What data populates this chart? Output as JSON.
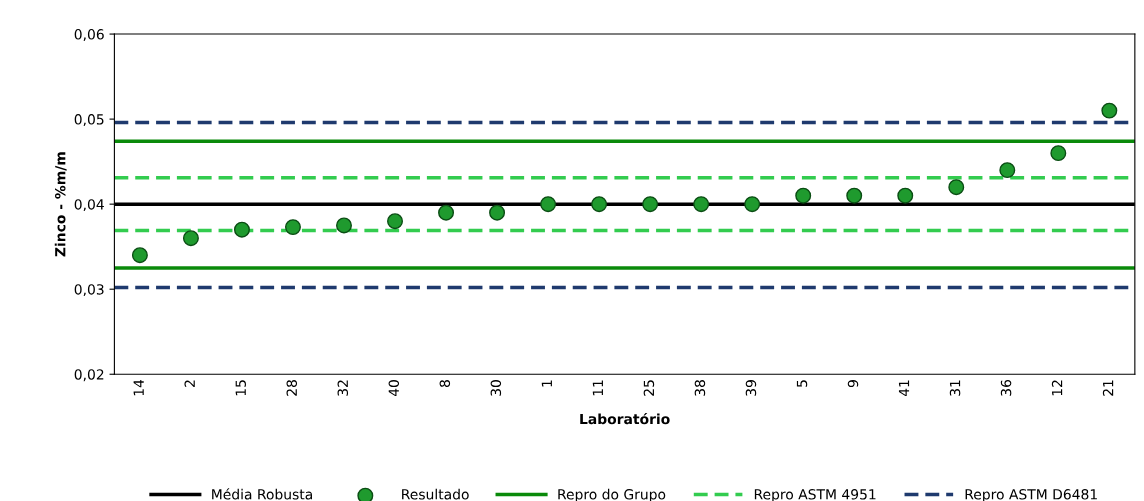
{
  "chart_data": {
    "type": "scatter",
    "xlabel": "Laboratório",
    "ylabel": "Zinco - %m/m",
    "categories": [
      "14",
      "2",
      "15",
      "28",
      "32",
      "40",
      "8",
      "30",
      "1",
      "11",
      "25",
      "38",
      "39",
      "5",
      "9",
      "41",
      "31",
      "36",
      "12",
      "21"
    ],
    "series": [
      {
        "name": "Resultado",
        "color": "#1f9a2e",
        "values": [
          0.034,
          0.036,
          0.037,
          0.0373,
          0.0375,
          0.038,
          0.039,
          0.039,
          0.04,
          0.04,
          0.04,
          0.04,
          0.04,
          0.041,
          0.041,
          0.041,
          0.042,
          0.044,
          0.046,
          0.051
        ]
      }
    ],
    "marker": "circle",
    "ylim": [
      0.02,
      0.06
    ],
    "yticks": [
      {
        "value": 0.02,
        "label": "0,02"
      },
      {
        "value": 0.03,
        "label": "0,03"
      },
      {
        "value": 0.04,
        "label": "0,04"
      },
      {
        "value": 0.05,
        "label": "0,05"
      },
      {
        "value": 0.06,
        "label": "0,06"
      }
    ],
    "ref_lines": [
      {
        "axis": "y",
        "value": 0.04,
        "label": "Média Robusta",
        "color": "#000000",
        "line_style": "solid"
      },
      {
        "axis": "y",
        "value": 0.0474,
        "label": "Repro do Grupo",
        "color": "#0a8a0a",
        "line_style": "solid"
      },
      {
        "axis": "y",
        "value": 0.0325,
        "color": "#0a8a0a",
        "line_style": "solid"
      },
      {
        "axis": "y",
        "value": 0.0431,
        "label": "Repro ASTM 4951",
        "color": "#33cc4f",
        "line_style": "dashed"
      },
      {
        "axis": "y",
        "value": 0.0369,
        "color": "#33cc4f",
        "line_style": "dashed"
      },
      {
        "axis": "y",
        "value": 0.0496,
        "label": "Repro ASTM D6481",
        "color": "#1f3a6e",
        "line_style": "dashed"
      },
      {
        "axis": "y",
        "value": 0.0302,
        "color": "#1f3a6e",
        "line_style": "dashed"
      }
    ],
    "grid": false,
    "legend": "bottom"
  }
}
